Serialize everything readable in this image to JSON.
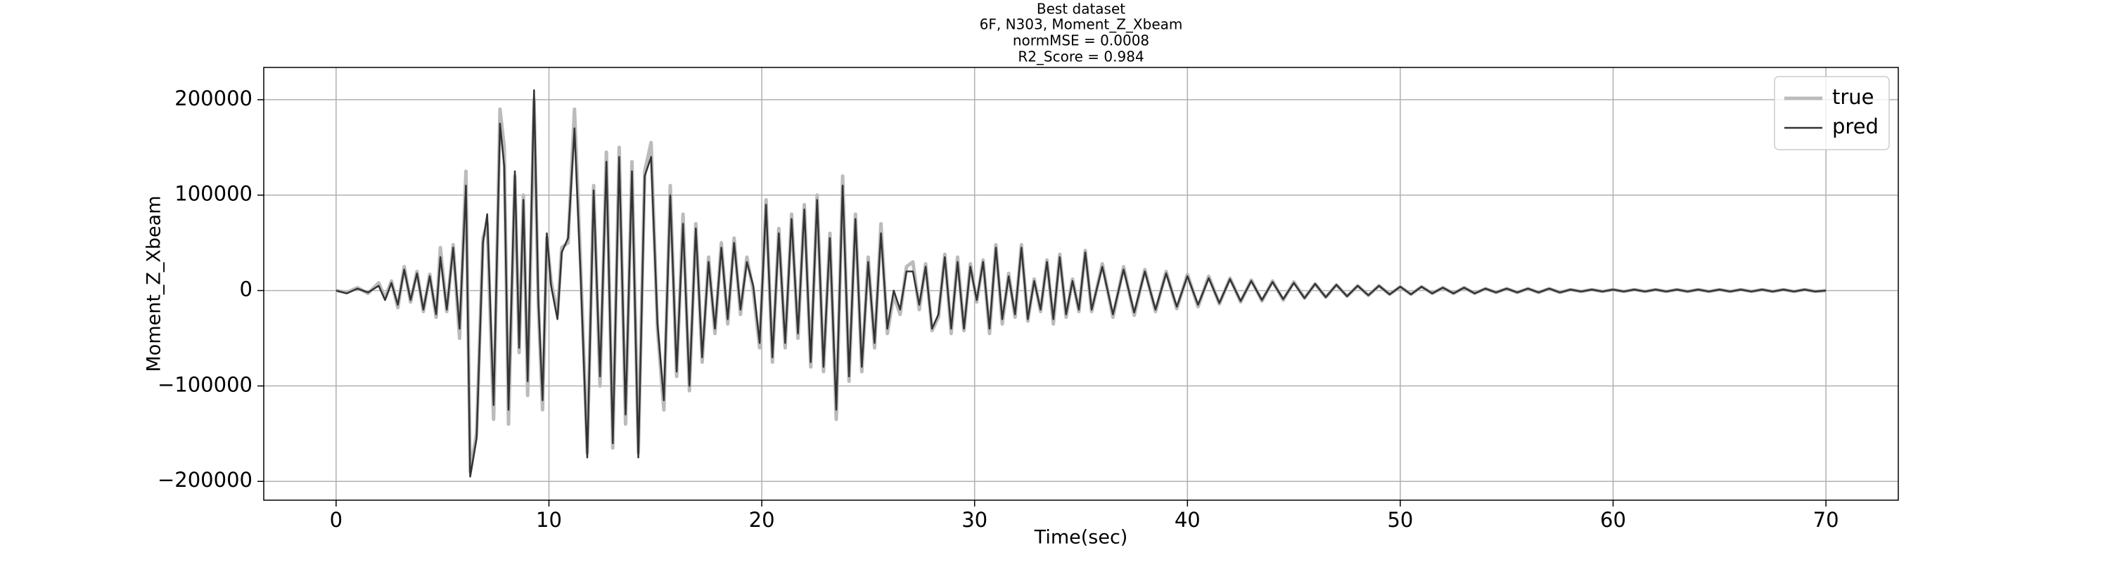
{
  "chart_data": {
    "type": "line",
    "title": [
      "Best dataset",
      "6F, N303, Moment_Z_Xbeam",
      "normMSE = 0.0008",
      "R2_Score = 0.984"
    ],
    "xlabel": "Time(sec)",
    "ylabel": "Moment_Z_Xbeam",
    "xlim": [
      -3.4,
      73.4
    ],
    "ylim": [
      -219700,
      233800
    ],
    "xticks": [
      0,
      10,
      20,
      30,
      40,
      50,
      60,
      70
    ],
    "yticks": [
      {
        "value": -200000,
        "label": "−200000"
      },
      {
        "value": -100000,
        "label": "−100000"
      },
      0,
      100000,
      200000
    ],
    "grid": true,
    "legend": "upper right",
    "x": [
      0,
      0.5,
      1,
      1.5,
      2,
      2.3,
      2.6,
      2.9,
      3.2,
      3.5,
      3.8,
      4.1,
      4.4,
      4.7,
      4.9,
      5.2,
      5.5,
      5.8,
      6.1,
      6.3,
      6.6,
      6.9,
      7.1,
      7.4,
      7.7,
      7.9,
      8.1,
      8.4,
      8.6,
      8.8,
      9.0,
      9.3,
      9.5,
      9.7,
      9.9,
      10.1,
      10.4,
      10.6,
      10.9,
      11.2,
      11.5,
      11.8,
      12.1,
      12.4,
      12.7,
      13,
      13.3,
      13.6,
      13.9,
      14.2,
      14.5,
      14.8,
      15.1,
      15.4,
      15.7,
      16,
      16.3,
      16.6,
      16.9,
      17.2,
      17.5,
      17.8,
      18.1,
      18.4,
      18.7,
      19,
      19.3,
      19.6,
      19.9,
      20.2,
      20.5,
      20.8,
      21.1,
      21.4,
      21.7,
      22,
      22.3,
      22.6,
      22.9,
      23.2,
      23.5,
      23.8,
      24.1,
      24.4,
      24.7,
      25,
      25.3,
      25.6,
      25.9,
      26.2,
      26.5,
      26.8,
      27.1,
      27.4,
      27.7,
      28,
      28.3,
      28.6,
      28.9,
      29.2,
      29.5,
      29.8,
      30.1,
      30.4,
      30.7,
      31,
      31.3,
      31.6,
      31.9,
      32.2,
      32.5,
      32.8,
      33.1,
      33.4,
      33.7,
      34,
      34.3,
      34.6,
      34.9,
      35.2,
      35.5,
      36,
      36.5,
      37,
      37.5,
      38,
      38.5,
      39,
      39.5,
      40,
      40.5,
      41,
      41.5,
      42,
      42.5,
      43,
      43.5,
      44,
      44.5,
      45,
      45.5,
      46,
      46.5,
      47,
      47.5,
      48,
      48.5,
      49,
      49.5,
      50,
      50.5,
      51,
      51.5,
      52,
      52.5,
      53,
      53.5,
      54,
      54.5,
      55,
      55.5,
      56,
      56.5,
      57,
      57.5,
      58,
      58.5,
      59,
      59.5,
      60,
      60.5,
      61,
      61.5,
      62,
      62.5,
      63,
      63.5,
      64,
      64.5,
      65,
      65.5,
      66,
      66.5,
      67,
      67.5,
      68,
      68.5,
      69,
      69.5,
      70
    ],
    "series": [
      {
        "name": "true",
        "color": "#bbbbbb",
        "width": 5,
        "values": [
          0,
          -2000,
          3000,
          -3000,
          8000,
          -8000,
          10000,
          -18000,
          25000,
          -12000,
          20000,
          -22000,
          17000,
          -28000,
          45000,
          -22000,
          48000,
          -50000,
          125000,
          -190000,
          -150000,
          55000,
          70000,
          -135000,
          190000,
          150000,
          -140000,
          120000,
          -65000,
          100000,
          -110000,
          200000,
          -15000,
          -125000,
          55000,
          10000,
          -25000,
          45000,
          50000,
          190000,
          20000,
          -170000,
          110000,
          -100000,
          145000,
          -165000,
          150000,
          -140000,
          135000,
          -170000,
          125000,
          155000,
          -40000,
          -125000,
          110000,
          -90000,
          80000,
          -105000,
          70000,
          -75000,
          35000,
          -45000,
          50000,
          -35000,
          55000,
          -25000,
          35000,
          0,
          -60000,
          95000,
          -75000,
          65000,
          -60000,
          80000,
          -50000,
          90000,
          -80000,
          100000,
          -85000,
          60000,
          -135000,
          120000,
          -95000,
          80000,
          -85000,
          35000,
          -60000,
          70000,
          -45000,
          -5000,
          -25000,
          25000,
          30000,
          -20000,
          28000,
          -42000,
          -28000,
          38000,
          -45000,
          35000,
          -42000,
          28000,
          -12000,
          32000,
          -45000,
          48000,
          -35000,
          18000,
          -28000,
          48000,
          -32000,
          12000,
          -22000,
          32000,
          -35000,
          38000,
          -28000,
          12000,
          -22000,
          42000,
          -22000,
          28000,
          -28000,
          25000,
          -26000,
          22000,
          -22000,
          20000,
          -19000,
          17000,
          -17000,
          15000,
          -14000,
          13000,
          -12000,
          11000,
          -11000,
          10000,
          -10000,
          9000,
          -8000,
          7000,
          -7000,
          6000,
          -6000,
          5000,
          -5000,
          5000,
          -4000,
          4000,
          -4000,
          4000,
          -3000,
          3000,
          -3000,
          3000,
          -3000,
          2000,
          -2000,
          2000,
          -2000,
          2000,
          -2000,
          2000,
          -2000,
          1000,
          -1000,
          1000,
          -1000,
          1000,
          -1000,
          1000,
          -1000,
          1000,
          -1000,
          1000,
          -1000,
          1000,
          -1000,
          1000,
          -1000,
          1000,
          -1000,
          1000,
          -1000,
          1000,
          -1000,
          1000,
          -1000,
          0
        ]
      },
      {
        "name": "pred",
        "color": "#333333",
        "width": 2.5,
        "values": [
          0,
          -3000,
          2000,
          -2000,
          5000,
          -10000,
          8000,
          -15000,
          22000,
          -10000,
          18000,
          -20000,
          15000,
          -25000,
          35000,
          -20000,
          45000,
          -40000,
          110000,
          -195000,
          -155000,
          50000,
          80000,
          -120000,
          175000,
          130000,
          -125000,
          125000,
          -60000,
          95000,
          -95000,
          210000,
          -10000,
          -115000,
          60000,
          5000,
          -30000,
          40000,
          55000,
          170000,
          10000,
          -175000,
          105000,
          -90000,
          135000,
          -160000,
          140000,
          -130000,
          125000,
          -175000,
          120000,
          140000,
          -35000,
          -115000,
          100000,
          -85000,
          70000,
          -100000,
          65000,
          -70000,
          30000,
          -40000,
          45000,
          -30000,
          50000,
          -20000,
          30000,
          5000,
          -55000,
          90000,
          -70000,
          60000,
          -55000,
          75000,
          -45000,
          85000,
          -75000,
          95000,
          -80000,
          55000,
          -125000,
          110000,
          -90000,
          75000,
          -80000,
          30000,
          -55000,
          60000,
          -40000,
          0,
          -20000,
          20000,
          20000,
          -15000,
          25000,
          -40000,
          -25000,
          35000,
          -40000,
          30000,
          -40000,
          25000,
          -10000,
          30000,
          -40000,
          45000,
          -30000,
          15000,
          -25000,
          45000,
          -30000,
          10000,
          -20000,
          30000,
          -30000,
          35000,
          -25000,
          10000,
          -20000,
          40000,
          -20000,
          25000,
          -25000,
          22000,
          -23000,
          20000,
          -20000,
          18000,
          -17000,
          15000,
          -15000,
          13000,
          -13000,
          12000,
          -11000,
          10000,
          -10000,
          9000,
          -9000,
          8000,
          -8000,
          7000,
          -7000,
          6000,
          -6000,
          5000,
          -5000,
          5000,
          -4000,
          4000,
          -4000,
          4000,
          -3000,
          3000,
          -3000,
          3000,
          -3000,
          2000,
          -2000,
          2000,
          -2000,
          2000,
          -2000,
          2000,
          -2000,
          1000,
          -1000,
          1000,
          -1000,
          1000,
          -1000,
          1000,
          -1000,
          1000,
          -1000,
          1000,
          -1000,
          1000,
          -1000,
          1000,
          -1000,
          1000,
          -1000,
          1000,
          -1000,
          1000,
          -1000,
          1000,
          -1000,
          0
        ]
      }
    ]
  }
}
